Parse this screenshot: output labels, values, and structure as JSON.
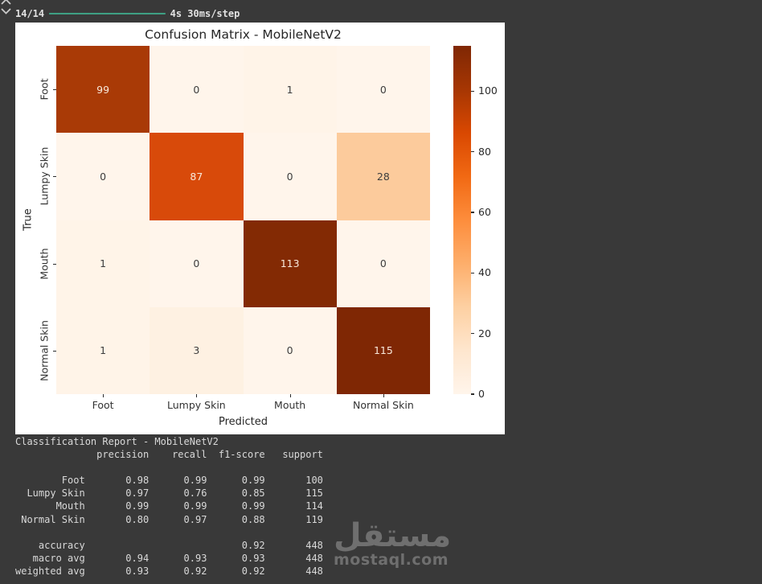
{
  "progress": {
    "step_label": "14/14",
    "bar_glyphs": "━━━━━━━━━━━━━━━━━━━━",
    "bar_color": "#3fa184",
    "timing": "4s 30ms/step"
  },
  "chart_data": {
    "type": "heatmap",
    "title": "Confusion Matrix - MobileNetV2",
    "xlabel": "Predicted",
    "ylabel": "True",
    "categories": [
      "Foot",
      "Lumpy Skin",
      "Mouth",
      "Normal Skin"
    ],
    "matrix": [
      [
        99,
        0,
        1,
        0
      ],
      [
        0,
        87,
        0,
        28
      ],
      [
        1,
        0,
        113,
        0
      ],
      [
        1,
        3,
        0,
        115
      ]
    ],
    "vmin": 0,
    "vmax": 115,
    "colormap": "Oranges",
    "colormap_stops": [
      "#fff5eb",
      "#fee6ce",
      "#fdd0a2",
      "#fdae6b",
      "#fd8d3c",
      "#f16913",
      "#d94801",
      "#a63603",
      "#7f2704"
    ],
    "cell_colors": [
      [
        "#a93a06",
        "#fff5eb",
        "#fff4e8",
        "#fff5eb"
      ],
      [
        "#fff5eb",
        "#d84a0a",
        "#fff5eb",
        "#fccb9c"
      ],
      [
        "#fff4e8",
        "#fff5eb",
        "#832a04",
        "#fff5eb"
      ],
      [
        "#fff4e8",
        "#fef1e2",
        "#fff5eb",
        "#7f2704"
      ]
    ],
    "colorbar_ticks": [
      0,
      20,
      40,
      60,
      80,
      100
    ],
    "dark_text": "#3d3d3d",
    "light_text": "#f8e9da",
    "legend_position": "right-colorbar",
    "grid": false
  },
  "report": {
    "title": "Classification Report - MobileNetV2",
    "headers": [
      "precision",
      "recall",
      "f1-score",
      "support"
    ],
    "rows": [
      {
        "name": "Foot",
        "precision": "0.98",
        "recall": "0.99",
        "f1": "0.99",
        "support": "100"
      },
      {
        "name": "Lumpy Skin",
        "precision": "0.97",
        "recall": "0.76",
        "f1": "0.85",
        "support": "115"
      },
      {
        "name": "Mouth",
        "precision": "0.99",
        "recall": "0.99",
        "f1": "0.99",
        "support": "114"
      },
      {
        "name": "Normal Skin",
        "precision": "0.80",
        "recall": "0.97",
        "f1": "0.88",
        "support": "119"
      }
    ],
    "summary": [
      {
        "name": "accuracy",
        "precision": "",
        "recall": "",
        "f1": "0.92",
        "support": "448"
      },
      {
        "name": "macro avg",
        "precision": "0.94",
        "recall": "0.93",
        "f1": "0.93",
        "support": "448"
      },
      {
        "name": "weighted avg",
        "precision": "0.93",
        "recall": "0.92",
        "f1": "0.92",
        "support": "448"
      }
    ]
  },
  "watermark": {
    "logo": "مستقل",
    "domain": "mostaql.com",
    "color": "#6f6f6f"
  },
  "icons": {
    "scroll_output": "chevrons-up-down"
  }
}
